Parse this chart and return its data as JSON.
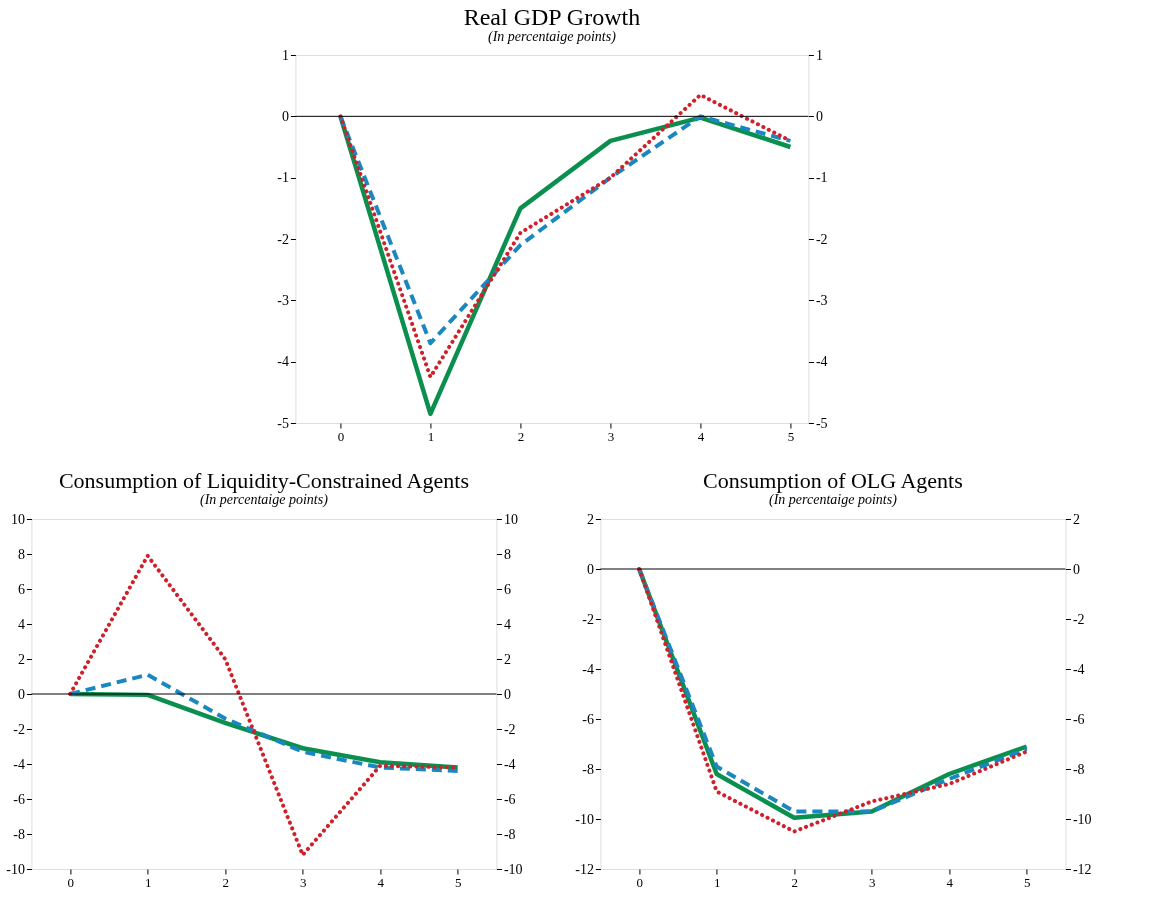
{
  "chart_data": [
    {
      "type": "line",
      "title": "Real GDP Growth",
      "subtitle": "(In percentaige points)",
      "x": [
        0,
        1,
        2,
        3,
        4,
        5
      ],
      "xlim": [
        -0.5,
        5.2
      ],
      "xticks": [
        0,
        1,
        2,
        3,
        4,
        5
      ],
      "ylim": [
        -5,
        1
      ],
      "yticks": [
        -5,
        -4,
        -3,
        -2,
        -1,
        0,
        1
      ],
      "y2lim": [
        -5,
        1
      ],
      "y2ticks": [
        -5,
        -4,
        -3,
        -2,
        -1,
        0,
        1
      ],
      "grid": false,
      "legend": false,
      "ref_lines": [
        {
          "axis": "y",
          "value": 0,
          "color": "#000000"
        }
      ],
      "series": [
        {
          "color": "#0a8f4f",
          "line_style": "solid",
          "values": [
            0,
            -4.85,
            -1.5,
            -0.4,
            -0.02,
            -0.5
          ]
        },
        {
          "color": "#1a87c0",
          "line_style": "dashed",
          "values": [
            0,
            -3.7,
            -2.1,
            -1.0,
            0,
            -0.4
          ]
        },
        {
          "color": "#d0202a",
          "line_style": "dotted",
          "values": [
            0,
            -4.25,
            -1.9,
            -1.0,
            0.35,
            -0.4
          ]
        }
      ]
    },
    {
      "type": "line",
      "title": "Consumption of Liquidity-Constrained Agents",
      "subtitle": "(In percentaige points)",
      "x": [
        0,
        1,
        2,
        3,
        4,
        5
      ],
      "xlim": [
        -0.5,
        5.5
      ],
      "xticks": [
        0,
        1,
        2,
        3,
        4,
        5
      ],
      "ylim": [
        -10,
        10
      ],
      "yticks": [
        -10,
        -8,
        -6,
        -4,
        -2,
        0,
        2,
        4,
        6,
        8,
        10
      ],
      "y2lim": [
        -10,
        10
      ],
      "y2ticks": [
        -10,
        -8,
        -6,
        -4,
        -2,
        0,
        2,
        4,
        6,
        8,
        10
      ],
      "grid": false,
      "legend": false,
      "ref_lines": [
        {
          "axis": "y",
          "value": 0,
          "color": "#000000"
        }
      ],
      "series": [
        {
          "color": "#0a8f4f",
          "line_style": "solid",
          "values": [
            0,
            -0.05,
            -1.65,
            -3.1,
            -3.9,
            -4.2
          ]
        },
        {
          "color": "#1a87c0",
          "line_style": "dashed",
          "values": [
            0,
            1.1,
            -1.4,
            -3.3,
            -4.2,
            -4.4
          ]
        },
        {
          "color": "#d0202a",
          "line_style": "dotted",
          "values": [
            0,
            7.9,
            2.0,
            -9.2,
            -4.1,
            -4.2
          ]
        }
      ]
    },
    {
      "type": "line",
      "title": "Consumption of OLG Agents",
      "subtitle": "(In percentaige points)",
      "x": [
        0,
        1,
        2,
        3,
        4,
        5
      ],
      "xlim": [
        -0.5,
        5.5
      ],
      "xticks": [
        0,
        1,
        2,
        3,
        4,
        5
      ],
      "ylim": [
        -12,
        2
      ],
      "yticks": [
        -12,
        -10,
        -8,
        -6,
        -4,
        -2,
        0,
        2
      ],
      "y2lim": [
        -12,
        2
      ],
      "y2ticks": [
        -12,
        -10,
        -8,
        -6,
        -4,
        -2,
        0,
        2
      ],
      "grid": false,
      "legend": false,
      "ref_lines": [
        {
          "axis": "y",
          "value": 0,
          "color": "#000000"
        }
      ],
      "series": [
        {
          "color": "#0a8f4f",
          "line_style": "solid",
          "values": [
            0,
            -8.2,
            -9.95,
            -9.7,
            -8.2,
            -7.1
          ]
        },
        {
          "color": "#1a87c0",
          "line_style": "dashed",
          "values": [
            0,
            -7.9,
            -9.7,
            -9.7,
            -8.4,
            -7.2
          ]
        },
        {
          "color": "#d0202a",
          "line_style": "dotted",
          "values": [
            0,
            -8.9,
            -10.5,
            -9.3,
            -8.6,
            -7.3
          ]
        }
      ]
    }
  ]
}
